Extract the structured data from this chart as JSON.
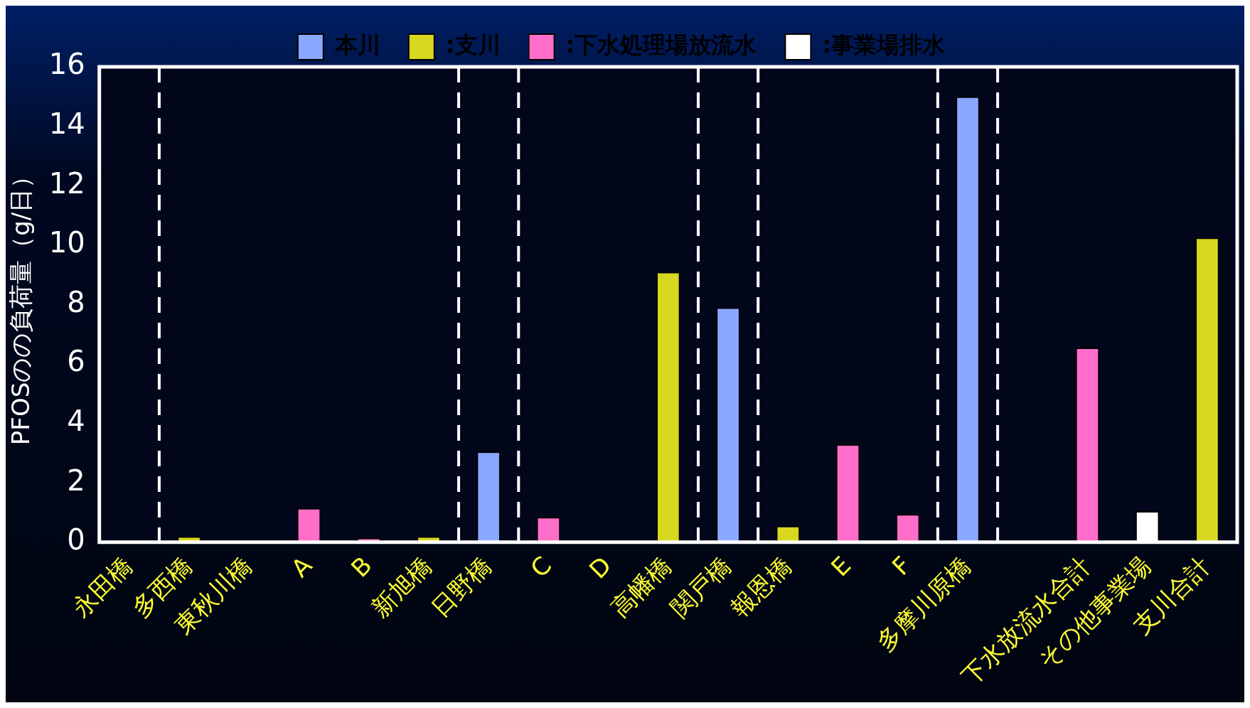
{
  "chart_data": {
    "type": "bar",
    "ylabel": "PFOSのの負荷量（g/日）",
    "categories": [
      "永田橋",
      "多西橋",
      "東秋川橋",
      "A",
      "B",
      "新旭橋",
      "日野橋",
      "C",
      "D",
      "高幡橋",
      "関戸橋",
      "報恩橋",
      "E",
      "F",
      "多摩川原橋",
      null,
      "下水放流水合計",
      "その他事業場",
      "支川合計"
    ],
    "series": [
      {
        "name": "本川",
        "color": "#8aa8ff",
        "values": [
          0,
          null,
          null,
          null,
          null,
          null,
          3.05,
          null,
          null,
          null,
          7.9,
          null,
          null,
          null,
          15.0,
          null,
          null,
          null,
          null
        ]
      },
      {
        "name": ":支川",
        "color": "#d8d820",
        "values": [
          null,
          0.2,
          0,
          null,
          null,
          0.2,
          null,
          null,
          null,
          9.1,
          null,
          0.55,
          null,
          null,
          null,
          null,
          null,
          null,
          10.25
        ]
      },
      {
        "name": ":下水処理場放流水",
        "color": "#ff6ec8",
        "values": [
          null,
          null,
          null,
          1.15,
          0.15,
          null,
          null,
          0.85,
          null,
          null,
          null,
          null,
          3.3,
          0.95,
          null,
          null,
          6.55,
          null,
          null
        ]
      },
      {
        "name": ":事業場排水",
        "color": "#ffffff",
        "values": [
          null,
          null,
          null,
          null,
          null,
          null,
          null,
          null,
          null,
          null,
          null,
          null,
          null,
          null,
          null,
          null,
          null,
          1.05,
          null
        ]
      }
    ],
    "ylim": [
      0,
      16
    ],
    "yticks": [
      0,
      2,
      4,
      6,
      8,
      10,
      12,
      14,
      16
    ],
    "legend": "top",
    "grid": false
  }
}
